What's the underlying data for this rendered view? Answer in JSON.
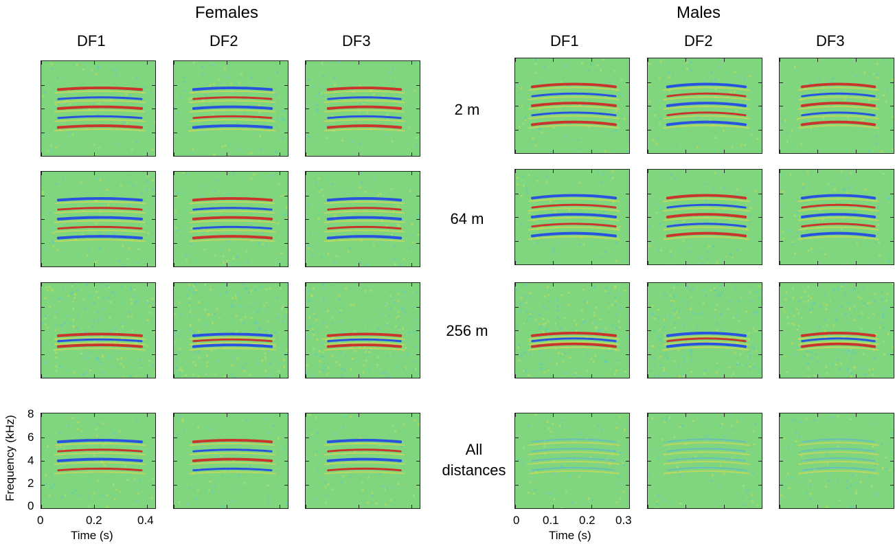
{
  "chart_data": {
    "type": "heatmap",
    "groups": [
      {
        "id": "females",
        "title": "Females",
        "columns": [
          "DF1",
          "DF2",
          "DF3"
        ],
        "xlabel": "Time (s)",
        "xlim": [
          0,
          0.43
        ],
        "xticks": [
          "0",
          "0.2",
          "0.4"
        ]
      },
      {
        "id": "males",
        "title": "Males",
        "columns": [
          "DF1",
          "DF2",
          "DF3"
        ],
        "xlabel": "Time (s)",
        "xlim": [
          0,
          0.3
        ],
        "xticks": [
          "0",
          "0.1",
          "0.2",
          "0.3"
        ]
      }
    ],
    "rows": [
      "2 m",
      "64 m",
      "256 m",
      "All distances"
    ],
    "ylabel": "Frequency (kHz)",
    "ylim": [
      0,
      8
    ],
    "yticks": [
      "0",
      "2",
      "4",
      "6",
      "8"
    ],
    "colormap": "jet",
    "colors": {
      "background": "#7fd67f",
      "positive": "#d7191c",
      "negative": "#1a3cf0"
    }
  }
}
